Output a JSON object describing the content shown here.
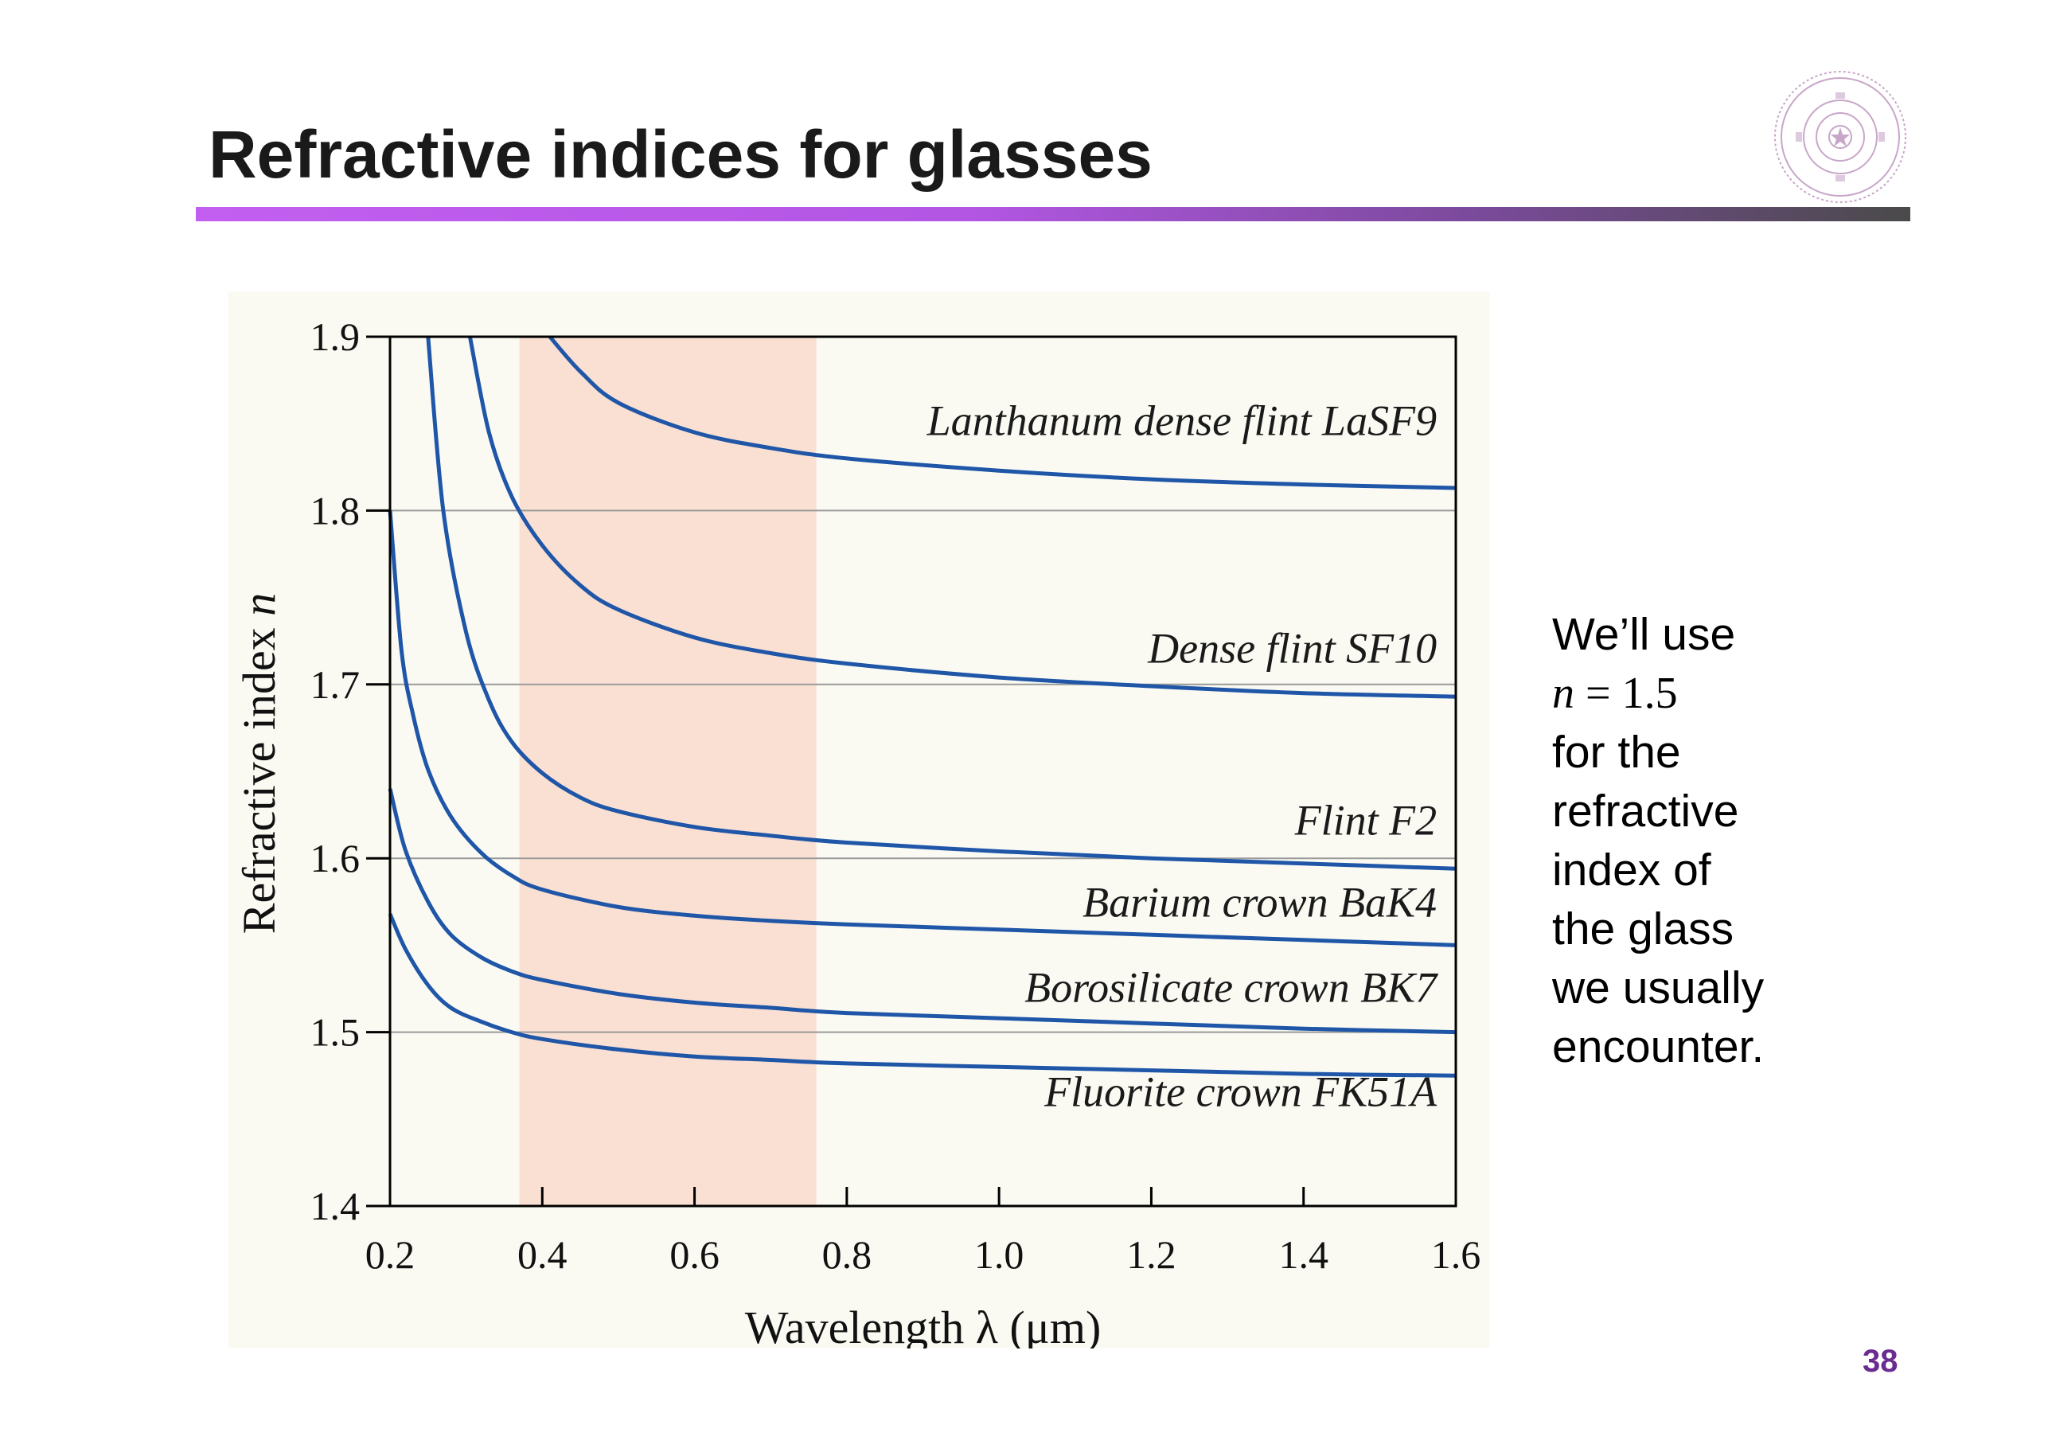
{
  "slide": {
    "title": "Refractive indices for glasses",
    "page_number": "38",
    "note_lines": [
      "We’ll use",
      "",
      "for the",
      "refractive",
      "index of",
      "the glass",
      "we usually",
      "encounter."
    ],
    "note_math": {
      "var": "n",
      "rest": " = 1.5"
    }
  },
  "colors": {
    "accent": "#c25ff0",
    "page_number": "#6a2c91",
    "curve": "#1f56a8",
    "visible_band": "#fae0d2",
    "panel_background": "#fafaf3"
  },
  "icons": {
    "logo": "university-seal-logo"
  },
  "chart_data": {
    "type": "line",
    "xlabel_text": "Wavelength λ (μm)",
    "ylabel": {
      "text": "Refractive index ",
      "var": "n"
    },
    "xlim": [
      0.2,
      1.6
    ],
    "ylim": [
      1.4,
      1.9
    ],
    "x_ticks": [
      "0.2",
      "0.4",
      "0.6",
      "0.8",
      "1.0",
      "1.2",
      "1.4",
      "1.6"
    ],
    "y_ticks": [
      "1.4",
      "1.5",
      "1.6",
      "1.7",
      "1.8",
      "1.9"
    ],
    "grid_y": [
      1.5,
      1.6,
      1.7,
      1.8
    ],
    "shaded_band_x": [
      0.37,
      0.76
    ],
    "series": [
      {
        "name": "Lanthanum dense flint LaSF9",
        "points": [
          [
            0.41,
            1.9
          ],
          [
            0.45,
            1.88
          ],
          [
            0.5,
            1.862
          ],
          [
            0.6,
            1.845
          ],
          [
            0.7,
            1.836
          ],
          [
            0.8,
            1.83
          ],
          [
            1.0,
            1.823
          ],
          [
            1.2,
            1.818
          ],
          [
            1.4,
            1.815
          ],
          [
            1.6,
            1.813
          ]
        ]
      },
      {
        "name": "Dense flint SF10",
        "points": [
          [
            0.305,
            1.9
          ],
          [
            0.33,
            1.845
          ],
          [
            0.36,
            1.808
          ],
          [
            0.4,
            1.78
          ],
          [
            0.45,
            1.757
          ],
          [
            0.5,
            1.743
          ],
          [
            0.6,
            1.727
          ],
          [
            0.7,
            1.718
          ],
          [
            0.8,
            1.712
          ],
          [
            1.0,
            1.704
          ],
          [
            1.2,
            1.699
          ],
          [
            1.4,
            1.695
          ],
          [
            1.6,
            1.693
          ]
        ]
      },
      {
        "name": "Flint F2",
        "points": [
          [
            0.25,
            1.9
          ],
          [
            0.27,
            1.8
          ],
          [
            0.3,
            1.73
          ],
          [
            0.33,
            1.691
          ],
          [
            0.36,
            1.667
          ],
          [
            0.4,
            1.649
          ],
          [
            0.45,
            1.635
          ],
          [
            0.5,
            1.627
          ],
          [
            0.6,
            1.618
          ],
          [
            0.7,
            1.613
          ],
          [
            0.8,
            1.609
          ],
          [
            1.0,
            1.604
          ],
          [
            1.2,
            1.6
          ],
          [
            1.4,
            1.597
          ],
          [
            1.6,
            1.594
          ]
        ]
      },
      {
        "name": "Barium crown BaK4",
        "points": [
          [
            0.2,
            1.8
          ],
          [
            0.215,
            1.72
          ],
          [
            0.23,
            1.683
          ],
          [
            0.25,
            1.651
          ],
          [
            0.28,
            1.624
          ],
          [
            0.32,
            1.603
          ],
          [
            0.36,
            1.59
          ],
          [
            0.4,
            1.582
          ],
          [
            0.5,
            1.572
          ],
          [
            0.6,
            1.567
          ],
          [
            0.7,
            1.564
          ],
          [
            0.8,
            1.562
          ],
          [
            1.0,
            1.559
          ],
          [
            1.2,
            1.556
          ],
          [
            1.4,
            1.553
          ],
          [
            1.6,
            1.55
          ]
        ]
      },
      {
        "name": "Borosilicate crown BK7",
        "points": [
          [
            0.2,
            1.64
          ],
          [
            0.22,
            1.605
          ],
          [
            0.25,
            1.575
          ],
          [
            0.28,
            1.556
          ],
          [
            0.32,
            1.543
          ],
          [
            0.36,
            1.535
          ],
          [
            0.4,
            1.53
          ],
          [
            0.5,
            1.522
          ],
          [
            0.6,
            1.517
          ],
          [
            0.7,
            1.514
          ],
          [
            0.8,
            1.511
          ],
          [
            1.0,
            1.508
          ],
          [
            1.2,
            1.505
          ],
          [
            1.4,
            1.502
          ],
          [
            1.6,
            1.5
          ]
        ]
      },
      {
        "name": "Fluorite crown FK51A",
        "points": [
          [
            0.2,
            1.568
          ],
          [
            0.22,
            1.548
          ],
          [
            0.25,
            1.527
          ],
          [
            0.28,
            1.514
          ],
          [
            0.32,
            1.506
          ],
          [
            0.36,
            1.5
          ],
          [
            0.4,
            1.496
          ],
          [
            0.5,
            1.49
          ],
          [
            0.6,
            1.486
          ],
          [
            0.7,
            1.484
          ],
          [
            0.8,
            1.482
          ],
          [
            1.0,
            1.48
          ],
          [
            1.2,
            1.478
          ],
          [
            1.4,
            1.476
          ],
          [
            1.6,
            1.475
          ]
        ]
      }
    ]
  }
}
